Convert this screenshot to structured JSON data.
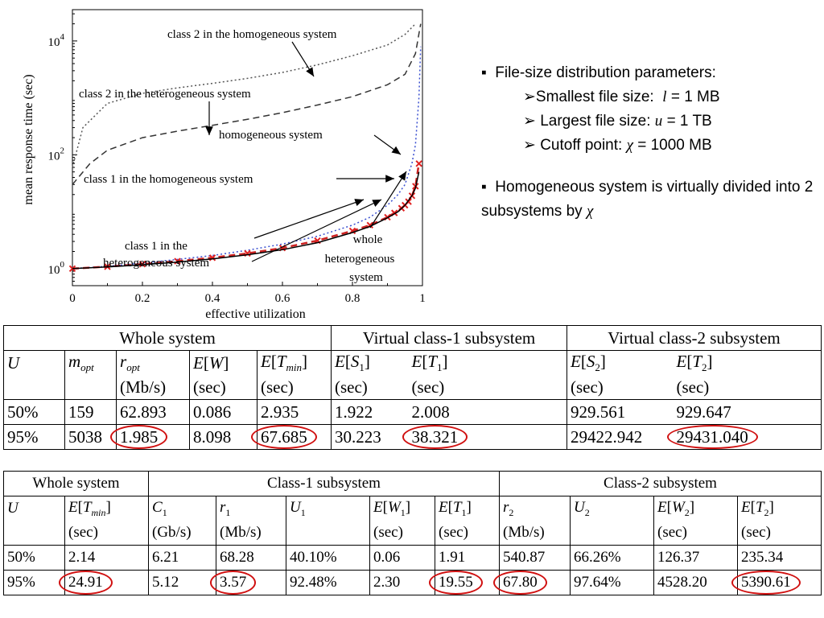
{
  "chart_data": {
    "type": "line",
    "ylabel": "mean response time (sec)",
    "xlabel": "effective utilization",
    "xlim": [
      0,
      1
    ],
    "ylim": [
      0.5,
      30000
    ],
    "y_scale": "log",
    "x_ticks": [
      "0",
      "0.2",
      "0.4",
      "0.6",
      "0.8",
      "1"
    ],
    "y_ticks": [
      {
        "base": "10",
        "exp": "0"
      },
      {
        "base": "10",
        "exp": "2"
      },
      {
        "base": "10",
        "exp": "4"
      }
    ],
    "series": [
      {
        "style": "dotted",
        "color": "#555555",
        "x": [
          0,
          0.03,
          0.1,
          0.2,
          0.3,
          0.4,
          0.5,
          0.6,
          0.7,
          0.8,
          0.9,
          0.95,
          0.98
        ],
        "y": [
          60,
          300,
          800,
          1200,
          1500,
          1800,
          2200,
          2800,
          3800,
          5500,
          8500,
          13000,
          20000
        ]
      },
      {
        "style": "dashed",
        "color": "#333333",
        "x": [
          0,
          0.05,
          0.1,
          0.2,
          0.3,
          0.4,
          0.5,
          0.6,
          0.7,
          0.8,
          0.9,
          0.95,
          0.98,
          0.995
        ],
        "y": [
          30,
          70,
          120,
          200,
          260,
          330,
          420,
          550,
          750,
          1050,
          1700,
          2600,
          6000,
          20000
        ]
      },
      {
        "style": "dotted",
        "color": "#3a4fd0",
        "x": [
          0,
          0.1,
          0.2,
          0.3,
          0.4,
          0.5,
          0.6,
          0.7,
          0.8,
          0.85,
          0.9,
          0.93,
          0.95,
          0.97,
          0.98,
          0.99,
          0.995
        ],
        "y": [
          1.0,
          1.1,
          1.25,
          1.45,
          1.7,
          2.1,
          2.7,
          3.7,
          5.8,
          8,
          13,
          20,
          30,
          70,
          150,
          1000,
          8000
        ]
      },
      {
        "style": "dashed",
        "color": "#cc2222",
        "marker": "x",
        "x": [
          0,
          0.1,
          0.2,
          0.3,
          0.4,
          0.5,
          0.6,
          0.7,
          0.8,
          0.85,
          0.9,
          0.92,
          0.94,
          0.95,
          0.96,
          0.97,
          0.98,
          0.99
        ],
        "y": [
          1.0,
          1.08,
          1.2,
          1.35,
          1.55,
          1.85,
          2.3,
          3.1,
          4.6,
          5.8,
          8,
          9.5,
          11.5,
          13,
          15,
          19,
          28,
          70
        ]
      },
      {
        "style": "solid",
        "color": "#000000",
        "x": [
          0,
          0.1,
          0.2,
          0.3,
          0.4,
          0.5,
          0.6,
          0.7,
          0.8,
          0.85,
          0.9,
          0.93,
          0.95,
          0.97,
          0.98,
          0.99
        ],
        "y": [
          1.0,
          1.07,
          1.17,
          1.3,
          1.48,
          1.75,
          2.15,
          2.85,
          4.3,
          5.5,
          7.8,
          10,
          13,
          19,
          26,
          50
        ]
      }
    ],
    "annotations": [
      "class 2 in the homogeneous system",
      "class 2 in the heterogeneous system",
      "homogeneous system",
      "class 1 in the homogeneous system",
      "class 1 in the",
      "heterogeneous system",
      "whole",
      "heterogeneous",
      "system"
    ]
  },
  "bullets": {
    "b1": "File-size distribution parameters:",
    "s1_pre": "Smallest file size:",
    "s1_var": "l",
    "s1_post": "= 1 MB",
    "s2_pre": "Largest file size:",
    "s2_var": "u",
    "s2_post": "= 1 TB",
    "s3_pre": "Cutoff point:",
    "s3_var": "χ",
    "s3_post": "= 1000 MB",
    "b2": "Homogeneous system is virtually divided into 2 subsystems by",
    "b2_var": "χ"
  },
  "table1": {
    "groups": [
      "Whole system",
      "Virtual class-1 subsystem",
      "Virtual class-2 subsystem"
    ],
    "headers": [
      "U",
      "m_opt",
      "r_opt",
      "E[W]",
      "E[T_min]",
      "E[S_1]",
      "E[T_1]",
      "E[S_2]",
      "E[T_2]"
    ],
    "units": [
      "",
      "",
      "(Mb/s)",
      "(sec)",
      "(sec)",
      "(sec)",
      "(sec)",
      "(sec)",
      "(sec)"
    ],
    "rows": [
      [
        "50%",
        "159",
        "62.893",
        "0.086",
        "2.935",
        "1.922",
        "2.008",
        "929.561",
        "929.647"
      ],
      [
        "95%",
        "5038",
        "1.985",
        "8.098",
        "67.685",
        "30.223",
        "38.321",
        "29422.942",
        "29431.040"
      ]
    ]
  },
  "table2": {
    "groups": [
      "Whole system",
      "Class-1 subsystem",
      "Class-2 subsystem"
    ],
    "headers": [
      "U",
      "E[T_min]",
      "C_1",
      "r_1",
      "U_1",
      "E[W_1]",
      "E[T_1]",
      "r_2",
      "U_2",
      "E[W_2]",
      "E[T_2]"
    ],
    "units": [
      "",
      "(sec)",
      "(Gb/s)",
      "(Mb/s)",
      "",
      "(sec)",
      "(sec)",
      "(Mb/s)",
      "",
      "(sec)",
      "(sec)"
    ],
    "rows": [
      [
        "50%",
        "2.14",
        "6.21",
        "68.28",
        "40.10%",
        "0.06",
        "1.91",
        "540.87",
        "66.26%",
        "126.37",
        "235.34"
      ],
      [
        "95%",
        "24.91",
        "5.12",
        "3.57",
        "92.48%",
        "2.30",
        "19.55",
        "67.80",
        "97.64%",
        "4528.20",
        "5390.61"
      ]
    ]
  },
  "colors": {
    "highlight_circle": "#d01010"
  }
}
